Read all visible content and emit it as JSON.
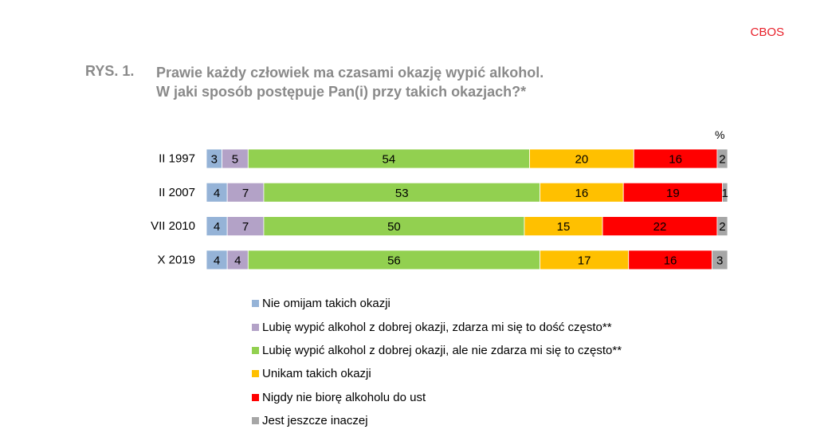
{
  "brand": "CBOS",
  "figure": {
    "label": "RYS. 1.",
    "title_lines": [
      "Prawie każdy człowiek ma czasami okazję wypić alkohol.",
      "W jaki sposób postępuje Pan(i) przy takich okazjach?*"
    ]
  },
  "chart_data": {
    "type": "bar",
    "orientation": "horizontal",
    "stacked": true,
    "normalized": true,
    "unit_label": "%",
    "categories": [
      "II 1997",
      "II 2007",
      "VII 2010",
      "X 2019"
    ],
    "series": [
      {
        "name": "Nie omijam takich okazji",
        "color": "#95b3d7",
        "values": [
          3,
          4,
          4,
          4
        ]
      },
      {
        "name": "Lubię wypić alkohol z dobrej okazji, zdarza mi się to dość często**",
        "color": "#b3a2c7",
        "values": [
          5,
          7,
          7,
          4
        ]
      },
      {
        "name": "Lubię wypić alkohol z dobrej okazji, ale nie zdarza mi się to często**",
        "color": "#92d050",
        "values": [
          54,
          53,
          50,
          56
        ]
      },
      {
        "name": "Unikam takich okazji",
        "color": "#ffc000",
        "values": [
          20,
          16,
          15,
          17
        ]
      },
      {
        "name": "Nigdy nie biorę alkoholu do ust",
        "color": "#ff0000",
        "values": [
          16,
          19,
          22,
          16
        ]
      },
      {
        "name": "Jest jeszcze inaczej",
        "color": "#a6a6a6",
        "values": [
          2,
          1,
          2,
          3
        ]
      }
    ],
    "xlim": [
      0,
      100
    ],
    "grid": false,
    "legend_position": "bottom"
  }
}
